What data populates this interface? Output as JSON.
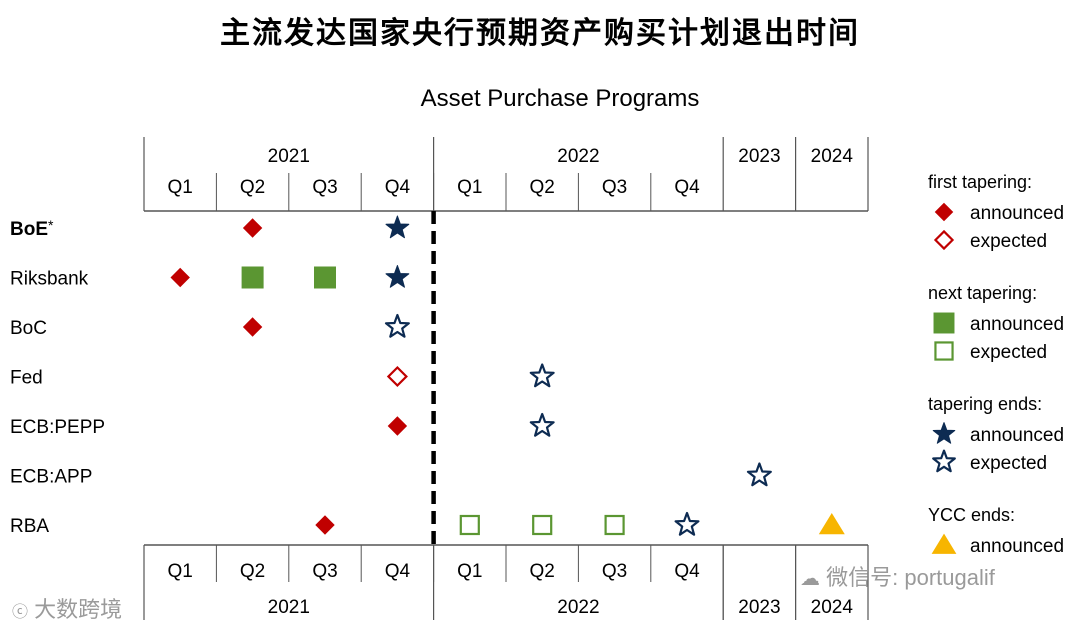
{
  "page_title": "主流发达国家央行预期资产购买计划退出时间",
  "chart_data": {
    "type": "scatter",
    "title": "Asset Purchase Programs",
    "columns_top": [
      {
        "year": "2021",
        "quarters": [
          "Q1",
          "Q2",
          "Q3",
          "Q4"
        ]
      },
      {
        "year": "2022",
        "quarters": [
          "Q1",
          "Q2",
          "Q3",
          "Q4"
        ]
      },
      {
        "year": "2023",
        "quarters": []
      },
      {
        "year": "2024",
        "quarters": []
      }
    ],
    "rows": [
      "BoE*",
      "Riksbank",
      "BoC",
      "Fed",
      "ECB:PEPP",
      "ECB:APP",
      "RBA"
    ],
    "divider_after": "2021 Q4",
    "markers": [
      {
        "row": "BoE*",
        "period": "2021 Q2",
        "kind": "first_tapering_announced"
      },
      {
        "row": "BoE*",
        "period": "2021 Q4",
        "kind": "tapering_ends_announced"
      },
      {
        "row": "Riksbank",
        "period": "2021 Q1",
        "kind": "first_tapering_announced"
      },
      {
        "row": "Riksbank",
        "period": "2021 Q2",
        "kind": "next_tapering_announced"
      },
      {
        "row": "Riksbank",
        "period": "2021 Q3",
        "kind": "next_tapering_announced"
      },
      {
        "row": "Riksbank",
        "period": "2021 Q4",
        "kind": "tapering_ends_announced"
      },
      {
        "row": "BoC",
        "period": "2021 Q2",
        "kind": "first_tapering_announced"
      },
      {
        "row": "BoC",
        "period": "2021 Q4",
        "kind": "tapering_ends_expected"
      },
      {
        "row": "Fed",
        "period": "2021 Q4",
        "kind": "first_tapering_expected"
      },
      {
        "row": "Fed",
        "period": "2022 Q2",
        "kind": "tapering_ends_expected"
      },
      {
        "row": "ECB:PEPP",
        "period": "2021 Q4",
        "kind": "first_tapering_announced"
      },
      {
        "row": "ECB:PEPP",
        "period": "2022 Q2",
        "kind": "tapering_ends_expected"
      },
      {
        "row": "ECB:APP",
        "period": "2023",
        "kind": "tapering_ends_expected"
      },
      {
        "row": "RBA",
        "period": "2021 Q3",
        "kind": "first_tapering_announced"
      },
      {
        "row": "RBA",
        "period": "2022 Q1",
        "kind": "next_tapering_expected"
      },
      {
        "row": "RBA",
        "period": "2022 Q2",
        "kind": "next_tapering_expected"
      },
      {
        "row": "RBA",
        "period": "2022 Q3",
        "kind": "next_tapering_expected"
      },
      {
        "row": "RBA",
        "period": "2022 Q4",
        "kind": "tapering_ends_expected"
      },
      {
        "row": "RBA",
        "period": "2024",
        "kind": "ycc_ends_announced"
      }
    ],
    "legend": [
      {
        "heading": "first tapering:",
        "items": [
          {
            "kind": "first_tapering_announced",
            "label": "announced"
          },
          {
            "kind": "first_tapering_expected",
            "label": "expected"
          }
        ]
      },
      {
        "heading": "next tapering:",
        "items": [
          {
            "kind": "next_tapering_announced",
            "label": "announced"
          },
          {
            "kind": "next_tapering_expected",
            "label": "expected"
          }
        ]
      },
      {
        "heading": "tapering ends:",
        "items": [
          {
            "kind": "tapering_ends_announced",
            "label": "announced"
          },
          {
            "kind": "tapering_ends_expected",
            "label": "expected"
          }
        ]
      },
      {
        "heading": "YCC ends:",
        "items": [
          {
            "kind": "ycc_ends_announced",
            "label": "announced"
          }
        ]
      }
    ],
    "colors": {
      "red": "#c00000",
      "green": "#5b9632",
      "navy": "#0d2b52",
      "gold": "#f7b500",
      "grid": "#555555"
    }
  },
  "watermarks": {
    "left": "大数跨境",
    "right": "微信号: portugalif"
  }
}
